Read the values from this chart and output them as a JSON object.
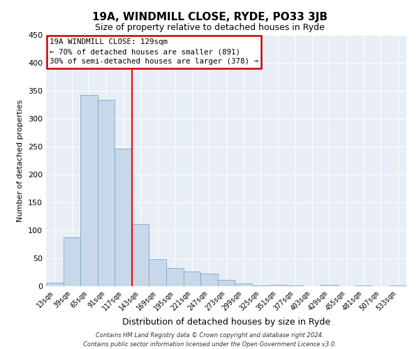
{
  "title": "19A, WINDMILL CLOSE, RYDE, PO33 3JB",
  "subtitle": "Size of property relative to detached houses in Ryde",
  "xlabel": "Distribution of detached houses by size in Ryde",
  "ylabel": "Number of detached properties",
  "bar_labels": [
    "13sqm",
    "39sqm",
    "65sqm",
    "91sqm",
    "117sqm",
    "143sqm",
    "169sqm",
    "195sqm",
    "221sqm",
    "247sqm",
    "273sqm",
    "299sqm",
    "325sqm",
    "351sqm",
    "377sqm",
    "403sqm",
    "429sqm",
    "455sqm",
    "481sqm",
    "507sqm",
    "533sqm"
  ],
  "bar_values": [
    6,
    88,
    342,
    334,
    246,
    111,
    49,
    33,
    26,
    22,
    11,
    5,
    1,
    3,
    1,
    0,
    2,
    0,
    1,
    0,
    1
  ],
  "bar_color": "#c8d8ea",
  "bar_edge_color": "#7aaac8",
  "vline_x_label_idx": 5,
  "vline_color": "red",
  "ylim": [
    0,
    450
  ],
  "yticks": [
    0,
    50,
    100,
    150,
    200,
    250,
    300,
    350,
    400,
    450
  ],
  "annotation_title": "19A WINDMILL CLOSE: 129sqm",
  "annotation_line1": "← 70% of detached houses are smaller (891)",
  "annotation_line2": "30% of semi-detached houses are larger (378) →",
  "annotation_box_color": "#cc0000",
  "footer_line1": "Contains HM Land Registry data © Crown copyright and database right 2024.",
  "footer_line2": "Contains public sector information licensed under the Open Government Licence v3.0.",
  "bg_color": "#ffffff",
  "plot_bg_color": "#e8eef5"
}
